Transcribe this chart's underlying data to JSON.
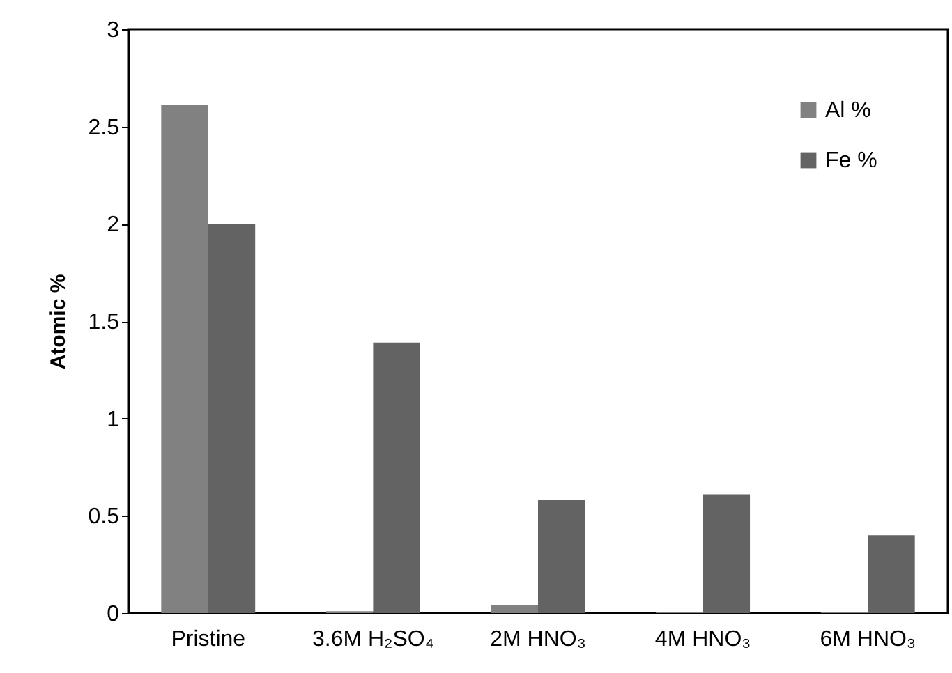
{
  "chart_data": {
    "type": "bar",
    "ylabel": "Atomic %",
    "categories": [
      "Pristine",
      "3.6M H₂SO₄",
      "2M HNO₃",
      "4M HNO₃",
      "6M HNO₃"
    ],
    "series": [
      {
        "name": "Al %",
        "color": "#818181",
        "values": [
          2.61,
          0.01,
          0.04,
          0.005,
          0.005
        ]
      },
      {
        "name": "Fe %",
        "color": "#636363",
        "values": [
          2.0,
          1.39,
          0.58,
          0.61,
          0.4
        ]
      }
    ],
    "ylim": [
      0,
      3
    ],
    "yticks": [
      0,
      0.5,
      1,
      1.5,
      2,
      2.5,
      3
    ],
    "grid": false,
    "legend": "top right"
  }
}
